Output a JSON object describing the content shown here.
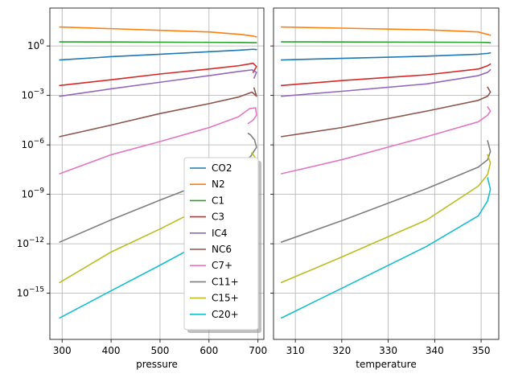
{
  "chart_data": [
    {
      "type": "line",
      "panel": "left",
      "xlabel": "pressure",
      "ylabel": "",
      "yscale": "log",
      "xlim": [
        275,
        712
      ],
      "ylim_log10": [
        -17.8,
        2.3
      ],
      "x_ticks": [
        300,
        400,
        500,
        600,
        700
      ],
      "y_ticks": [
        {
          "exp": 0,
          "label": "10",
          "sup": "0"
        },
        {
          "exp": -3,
          "label": "10",
          "sup": "−3"
        },
        {
          "exp": -6,
          "label": "10",
          "sup": "−6"
        },
        {
          "exp": -9,
          "label": "10",
          "sup": "−9"
        },
        {
          "exp": -12,
          "label": "10",
          "sup": "−12"
        },
        {
          "exp": -15,
          "label": "10",
          "sup": "−15"
        }
      ],
      "grid": true,
      "legend": {
        "placement": "lower-right",
        "entries": [
          "CO2",
          "N2",
          "C1",
          "C3",
          "IC4",
          "NC6",
          "C7+",
          "C11+",
          "C15+",
          "C20+"
        ]
      },
      "series": [
        {
          "name": "CO2",
          "color": "#1f77b4",
          "points": [
            [
              295,
              -0.85
            ],
            [
              400,
              -0.65
            ],
            [
              500,
              -0.5
            ],
            [
              600,
              -0.35
            ],
            [
              665,
              -0.25
            ],
            [
              690,
              -0.2
            ],
            [
              697,
              -0.22
            ]
          ]
        },
        {
          "name": "N2",
          "color": "#ff7f0e",
          "points": [
            [
              295,
              1.15
            ],
            [
              400,
              1.05
            ],
            [
              500,
              0.95
            ],
            [
              600,
              0.85
            ],
            [
              665,
              0.7
            ],
            [
              690,
              0.6
            ],
            [
              697,
              0.55
            ]
          ]
        },
        {
          "name": "C1",
          "color": "#2ca02c",
          "points": [
            [
              295,
              0.25
            ],
            [
              400,
              0.24
            ],
            [
              500,
              0.23
            ],
            [
              600,
              0.22
            ],
            [
              665,
              0.21
            ],
            [
              690,
              0.2
            ],
            [
              697,
              0.2
            ]
          ]
        },
        {
          "name": "C3",
          "color": "#d62728",
          "points": [
            [
              295,
              -2.4
            ],
            [
              400,
              -2.05
            ],
            [
              500,
              -1.7
            ],
            [
              600,
              -1.4
            ],
            [
              660,
              -1.2
            ],
            [
              690,
              -1.05
            ],
            [
              697,
              -1.25
            ],
            [
              690,
              -1.6
            ]
          ]
        },
        {
          "name": "IC4",
          "color": "#9467bd",
          "points": [
            [
              295,
              -3.05
            ],
            [
              400,
              -2.6
            ],
            [
              500,
              -2.2
            ],
            [
              600,
              -1.8
            ],
            [
              660,
              -1.55
            ],
            [
              688,
              -1.45
            ],
            [
              697,
              -1.6
            ],
            [
              692,
              -1.95
            ]
          ]
        },
        {
          "name": "NC6",
          "color": "#8c564b",
          "points": [
            [
              295,
              -5.5
            ],
            [
              400,
              -4.8
            ],
            [
              500,
              -4.1
            ],
            [
              600,
              -3.5
            ],
            [
              660,
              -3.1
            ],
            [
              688,
              -2.8
            ],
            [
              697,
              -3.05
            ],
            [
              692,
              -2.55
            ]
          ]
        },
        {
          "name": "C7+",
          "color": "#e377c2",
          "points": [
            [
              295,
              -7.75
            ],
            [
              400,
              -6.6
            ],
            [
              500,
              -5.8
            ],
            [
              600,
              -4.95
            ],
            [
              660,
              -4.3
            ],
            [
              683,
              -3.8
            ],
            [
              695,
              -3.75
            ],
            [
              697,
              -4.2
            ],
            [
              690,
              -4.5
            ],
            [
              680,
              -4.7
            ]
          ]
        },
        {
          "name": "C11+",
          "color": "#7f7f7f",
          "points": [
            [
              295,
              -11.9
            ],
            [
              400,
              -10.55
            ],
            [
              500,
              -9.35
            ],
            [
              600,
              -8.2
            ],
            [
              660,
              -7.3
            ],
            [
              685,
              -6.7
            ],
            [
              697,
              -6.15
            ],
            [
              693,
              -5.7
            ],
            [
              685,
              -5.4
            ],
            [
              680,
              -5.3
            ]
          ]
        },
        {
          "name": "C15+",
          "color": "#bcbd22",
          "points": [
            [
              295,
              -14.35
            ],
            [
              400,
              -12.5
            ],
            [
              500,
              -11.1
            ],
            [
              600,
              -9.6
            ],
            [
              660,
              -8.5
            ],
            [
              683,
              -7.8
            ],
            [
              695,
              -6.9
            ],
            [
              693,
              -6.7
            ],
            [
              687,
              -6.5
            ]
          ]
        },
        {
          "name": "C20+",
          "color": "#17becf",
          "points": [
            [
              295,
              -16.5
            ],
            [
              400,
              -14.85
            ],
            [
              500,
              -13.3
            ],
            [
              600,
              -11.7
            ],
            [
              655,
              -10.3
            ],
            [
              685,
              -9.3
            ],
            [
              695,
              -8.7
            ],
            [
              693,
              -8.1
            ],
            [
              687,
              -7.8
            ]
          ]
        }
      ]
    },
    {
      "type": "line",
      "panel": "right",
      "xlabel": "temperature",
      "ylabel": "",
      "yscale": "log",
      "xlim": [
        305.3,
        353.8
      ],
      "ylim_log10": [
        -17.8,
        2.3
      ],
      "x_ticks": [
        310,
        320,
        330,
        340,
        350
      ],
      "grid": true,
      "series": [
        {
          "name": "CO2",
          "color": "#1f77b4",
          "points": [
            [
              307.0,
              -0.85
            ],
            [
              320,
              -0.75
            ],
            [
              338.3,
              -0.62
            ],
            [
              349.4,
              -0.5
            ],
            [
              351.4,
              -0.45
            ],
            [
              352.0,
              -0.42
            ]
          ]
        },
        {
          "name": "N2",
          "color": "#ff7f0e",
          "points": [
            [
              307.0,
              1.15
            ],
            [
              320,
              1.08
            ],
            [
              338.3,
              0.98
            ],
            [
              349.4,
              0.85
            ],
            [
              351.4,
              0.7
            ],
            [
              352.0,
              0.65
            ]
          ]
        },
        {
          "name": "C1",
          "color": "#2ca02c",
          "points": [
            [
              307.0,
              0.25
            ],
            [
              320,
              0.24
            ],
            [
              338.3,
              0.23
            ],
            [
              349.4,
              0.22
            ],
            [
              351.4,
              0.21
            ],
            [
              352.0,
              0.2
            ]
          ]
        },
        {
          "name": "C3",
          "color": "#d62728",
          "points": [
            [
              307.0,
              -2.4
            ],
            [
              320,
              -2.1
            ],
            [
              338.3,
              -1.75
            ],
            [
              349.4,
              -1.4
            ],
            [
              351.4,
              -1.2
            ],
            [
              352.0,
              -1.1
            ]
          ]
        },
        {
          "name": "IC4",
          "color": "#9467bd",
          "points": [
            [
              307.0,
              -3.05
            ],
            [
              320,
              -2.75
            ],
            [
              338.3,
              -2.3
            ],
            [
              349.4,
              -1.8
            ],
            [
              351.4,
              -1.6
            ],
            [
              352.0,
              -1.45
            ]
          ]
        },
        {
          "name": "NC6",
          "color": "#8c564b",
          "points": [
            [
              307.0,
              -5.5
            ],
            [
              320,
              -4.95
            ],
            [
              338.3,
              -3.95
            ],
            [
              349.4,
              -3.3
            ],
            [
              351.4,
              -3.05
            ],
            [
              352.0,
              -2.8
            ],
            [
              351.4,
              -2.5
            ]
          ]
        },
        {
          "name": "C7+",
          "color": "#e377c2",
          "points": [
            [
              307.0,
              -7.75
            ],
            [
              320,
              -6.9
            ],
            [
              338.3,
              -5.5
            ],
            [
              349.4,
              -4.6
            ],
            [
              351.4,
              -4.2
            ],
            [
              352.0,
              -3.95
            ],
            [
              351.4,
              -3.7
            ]
          ]
        },
        {
          "name": "C11+",
          "color": "#7f7f7f",
          "points": [
            [
              307.0,
              -11.9
            ],
            [
              320,
              -10.6
            ],
            [
              338.3,
              -8.65
            ],
            [
              349.4,
              -7.35
            ],
            [
              351.4,
              -6.9
            ],
            [
              352.0,
              -6.4
            ],
            [
              351.4,
              -5.75
            ]
          ]
        },
        {
          "name": "C15+",
          "color": "#bcbd22",
          "points": [
            [
              307.0,
              -14.35
            ],
            [
              320,
              -12.8
            ],
            [
              338.3,
              -10.55
            ],
            [
              349.4,
              -8.5
            ],
            [
              351.4,
              -7.8
            ],
            [
              352.0,
              -7.1
            ],
            [
              351.4,
              -6.6
            ]
          ]
        },
        {
          "name": "C20+",
          "color": "#17becf",
          "points": [
            [
              307.0,
              -16.5
            ],
            [
              320,
              -14.7
            ],
            [
              338.3,
              -12.15
            ],
            [
              349.4,
              -10.3
            ],
            [
              351.4,
              -9.4
            ],
            [
              352.0,
              -8.7
            ],
            [
              351.4,
              -8.0
            ]
          ]
        }
      ]
    }
  ]
}
